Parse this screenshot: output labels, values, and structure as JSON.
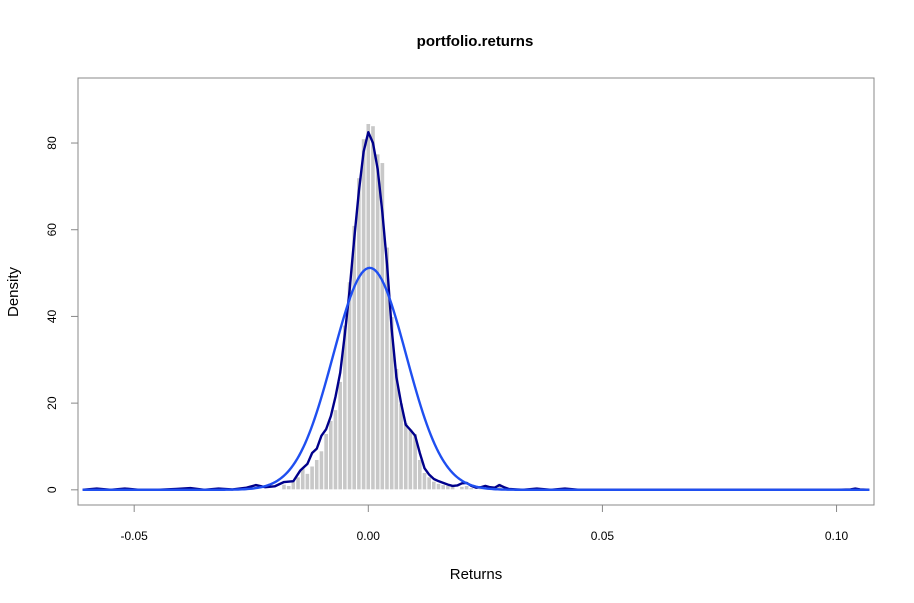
{
  "chart_data": {
    "type": "histogram",
    "title": "portfolio.returns",
    "xlabel": "Returns",
    "ylabel": "Density",
    "xlim": [
      -0.062,
      0.108
    ],
    "ylim": [
      -3.5,
      95
    ],
    "x_ticks": [
      {
        "value": -0.05,
        "label": "-0.05"
      },
      {
        "value": 0.0,
        "label": "0.00"
      },
      {
        "value": 0.05,
        "label": "0.05"
      },
      {
        "value": 0.1,
        "label": "0.10"
      }
    ],
    "y_ticks": [
      {
        "value": 0,
        "label": "0"
      },
      {
        "value": 20,
        "label": "20"
      },
      {
        "value": 40,
        "label": "40"
      },
      {
        "value": 60,
        "label": "60"
      },
      {
        "value": 80,
        "label": "80"
      }
    ],
    "histogram": {
      "bin_width": 0.001,
      "color": "#c8c8c8",
      "bins": [
        {
          "x": -0.06,
          "y": 0.4
        },
        {
          "x": -0.055,
          "y": 0.3
        },
        {
          "x": -0.05,
          "y": 0.2
        },
        {
          "x": -0.039,
          "y": 0.3
        },
        {
          "x": -0.031,
          "y": 0.3
        },
        {
          "x": -0.025,
          "y": 0.8
        },
        {
          "x": -0.018,
          "y": 1.3
        },
        {
          "x": -0.017,
          "y": 1.0
        },
        {
          "x": -0.016,
          "y": 2.0
        },
        {
          "x": -0.015,
          "y": 3.0
        },
        {
          "x": -0.014,
          "y": 5.0
        },
        {
          "x": -0.013,
          "y": 3.8
        },
        {
          "x": -0.012,
          "y": 5.5
        },
        {
          "x": -0.011,
          "y": 7.0
        },
        {
          "x": -0.01,
          "y": 9.0
        },
        {
          "x": -0.009,
          "y": 13.0
        },
        {
          "x": -0.008,
          "y": 16.0
        },
        {
          "x": -0.007,
          "y": 18.5
        },
        {
          "x": -0.006,
          "y": 25.0
        },
        {
          "x": -0.005,
          "y": 38.0
        },
        {
          "x": -0.004,
          "y": 48.0
        },
        {
          "x": -0.003,
          "y": 61.0
        },
        {
          "x": -0.002,
          "y": 72.0
        },
        {
          "x": -0.001,
          "y": 81.0
        },
        {
          "x": 0.0,
          "y": 84.5
        },
        {
          "x": 0.001,
          "y": 84.0
        },
        {
          "x": 0.002,
          "y": 77.5
        },
        {
          "x": 0.003,
          "y": 75.5
        },
        {
          "x": 0.004,
          "y": 56.0
        },
        {
          "x": 0.005,
          "y": 40.0
        },
        {
          "x": 0.006,
          "y": 28.0
        },
        {
          "x": 0.007,
          "y": 20.0
        },
        {
          "x": 0.008,
          "y": 15.5
        },
        {
          "x": 0.009,
          "y": 14.0
        },
        {
          "x": 0.01,
          "y": 13.0
        },
        {
          "x": 0.011,
          "y": 7.0
        },
        {
          "x": 0.012,
          "y": 4.0
        },
        {
          "x": 0.013,
          "y": 3.0
        },
        {
          "x": 0.014,
          "y": 2.0
        },
        {
          "x": 0.015,
          "y": 1.5
        },
        {
          "x": 0.016,
          "y": 1.2
        },
        {
          "x": 0.017,
          "y": 1.0
        },
        {
          "x": 0.018,
          "y": 0.8
        },
        {
          "x": 0.02,
          "y": 0.8
        },
        {
          "x": 0.021,
          "y": 1.0
        },
        {
          "x": 0.022,
          "y": 0.5
        },
        {
          "x": 0.024,
          "y": 0.6
        },
        {
          "x": 0.026,
          "y": 0.4
        },
        {
          "x": 0.028,
          "y": 1.5
        },
        {
          "x": 0.036,
          "y": 0.3
        },
        {
          "x": 0.042,
          "y": 0.3
        },
        {
          "x": 0.104,
          "y": 0.4
        }
      ]
    },
    "series": [
      {
        "type": "line",
        "color": "#00008b",
        "points": [
          [
            -0.061,
            0.0
          ],
          [
            -0.058,
            0.3
          ],
          [
            -0.055,
            0.0
          ],
          [
            -0.052,
            0.3
          ],
          [
            -0.049,
            0.0
          ],
          [
            -0.045,
            0.0
          ],
          [
            -0.041,
            0.2
          ],
          [
            -0.038,
            0.4
          ],
          [
            -0.035,
            0.0
          ],
          [
            -0.032,
            0.3
          ],
          [
            -0.029,
            0.1
          ],
          [
            -0.026,
            0.5
          ],
          [
            -0.024,
            1.1
          ],
          [
            -0.022,
            0.6
          ],
          [
            -0.02,
            0.8
          ],
          [
            -0.018,
            1.8
          ],
          [
            -0.016,
            2.0
          ],
          [
            -0.0145,
            4.5
          ],
          [
            -0.013,
            6.0
          ],
          [
            -0.012,
            8.5
          ],
          [
            -0.011,
            9.5
          ],
          [
            -0.01,
            12.5
          ],
          [
            -0.009,
            14.0
          ],
          [
            -0.008,
            17.0
          ],
          [
            -0.007,
            21.5
          ],
          [
            -0.006,
            27.0
          ],
          [
            -0.005,
            36.0
          ],
          [
            -0.004,
            46.0
          ],
          [
            -0.003,
            58.0
          ],
          [
            -0.002,
            69.0
          ],
          [
            -0.001,
            78.0
          ],
          [
            0.0,
            82.5
          ],
          [
            0.001,
            80.0
          ],
          [
            0.002,
            74.0
          ],
          [
            0.003,
            64.0
          ],
          [
            0.004,
            52.0
          ],
          [
            0.005,
            37.0
          ],
          [
            0.006,
            26.0
          ],
          [
            0.007,
            20.0
          ],
          [
            0.008,
            15.0
          ],
          [
            0.009,
            13.8
          ],
          [
            0.01,
            12.5
          ],
          [
            0.011,
            8.5
          ],
          [
            0.012,
            5.0
          ],
          [
            0.013,
            3.5
          ],
          [
            0.014,
            2.5
          ],
          [
            0.015,
            2.0
          ],
          [
            0.016,
            1.6
          ],
          [
            0.017,
            1.2
          ],
          [
            0.018,
            0.9
          ],
          [
            0.019,
            1.0
          ],
          [
            0.02,
            1.5
          ],
          [
            0.021,
            1.6
          ],
          [
            0.022,
            0.9
          ],
          [
            0.023,
            0.5
          ],
          [
            0.024,
            0.6
          ],
          [
            0.025,
            0.9
          ],
          [
            0.026,
            0.6
          ],
          [
            0.027,
            0.5
          ],
          [
            0.028,
            1.1
          ],
          [
            0.029,
            0.6
          ],
          [
            0.03,
            0.2
          ],
          [
            0.033,
            0.0
          ],
          [
            0.036,
            0.3
          ],
          [
            0.039,
            0.0
          ],
          [
            0.042,
            0.3
          ],
          [
            0.045,
            0.0
          ],
          [
            0.06,
            0.0
          ],
          [
            0.08,
            0.0
          ],
          [
            0.1,
            0.0
          ],
          [
            0.103,
            0.1
          ],
          [
            0.104,
            0.3
          ],
          [
            0.105,
            0.1
          ],
          [
            0.107,
            0.0
          ]
        ]
      },
      {
        "type": "normal",
        "color": "#1f4ff0",
        "mean": 0.0003,
        "peak": 51.2,
        "sd": 0.0078
      }
    ]
  }
}
